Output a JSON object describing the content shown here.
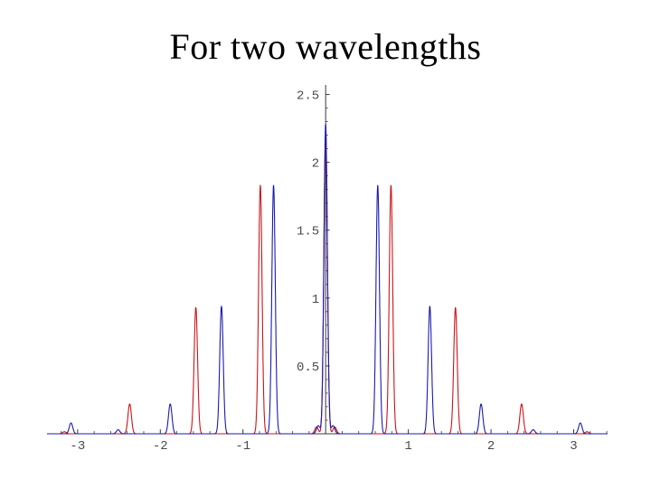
{
  "title": "For two wavelengths",
  "chart_data": {
    "type": "line",
    "title": "For two wavelengths",
    "xlabel": "",
    "ylabel": "",
    "xlim": [
      -3.37,
      3.41
    ],
    "ylim": [
      0,
      2.59
    ],
    "grid": false,
    "legend": "none",
    "axis_color": "#3a3a3a",
    "tick_label_color": "#4a4a4a",
    "peak_sigma": 0.021,
    "x_ticks": [
      {
        "value": -3,
        "label": "-3"
      },
      {
        "value": -2,
        "label": "-2"
      },
      {
        "value": -1,
        "label": "-1"
      },
      {
        "value": 1,
        "label": "1"
      },
      {
        "value": 2,
        "label": "2"
      },
      {
        "value": 3,
        "label": "3"
      }
    ],
    "y_ticks": [
      {
        "value": 0.5,
        "label": "0.5"
      },
      {
        "value": 1,
        "label": "1"
      },
      {
        "value": 1.5,
        "label": "1.5"
      },
      {
        "value": 2,
        "label": "2"
      },
      {
        "value": 2.5,
        "label": "2.5"
      }
    ],
    "series": [
      {
        "name": "red-wavelength",
        "color": "#cc1418",
        "peaks": [
          {
            "x": -3.16,
            "h": 0.015
          },
          {
            "x": -2.37,
            "h": 0.22
          },
          {
            "x": -1.57,
            "h": 0.93
          },
          {
            "x": -0.79,
            "h": 1.83
          },
          {
            "x": -0.11,
            "h": 0.05
          },
          {
            "x": 0.0,
            "h": 2.2
          },
          {
            "x": 0.11,
            "h": 0.05
          },
          {
            "x": 0.79,
            "h": 1.83
          },
          {
            "x": 1.57,
            "h": 0.93
          },
          {
            "x": 2.37,
            "h": 0.22
          },
          {
            "x": 3.16,
            "h": 0.015
          }
        ]
      },
      {
        "name": "blue-wavelength",
        "color": "#1b1bb0",
        "peaks": [
          {
            "x": -3.08,
            "h": 0.08
          },
          {
            "x": -2.51,
            "h": 0.03
          },
          {
            "x": -1.88,
            "h": 0.22
          },
          {
            "x": -1.26,
            "h": 0.94
          },
          {
            "x": -0.63,
            "h": 1.83
          },
          {
            "x": -0.09,
            "h": 0.06
          },
          {
            "x": 0.0,
            "h": 2.28
          },
          {
            "x": 0.09,
            "h": 0.06
          },
          {
            "x": 0.63,
            "h": 1.83
          },
          {
            "x": 1.26,
            "h": 0.94
          },
          {
            "x": 1.88,
            "h": 0.22
          },
          {
            "x": 2.51,
            "h": 0.03
          },
          {
            "x": 3.08,
            "h": 0.08
          }
        ]
      }
    ]
  }
}
